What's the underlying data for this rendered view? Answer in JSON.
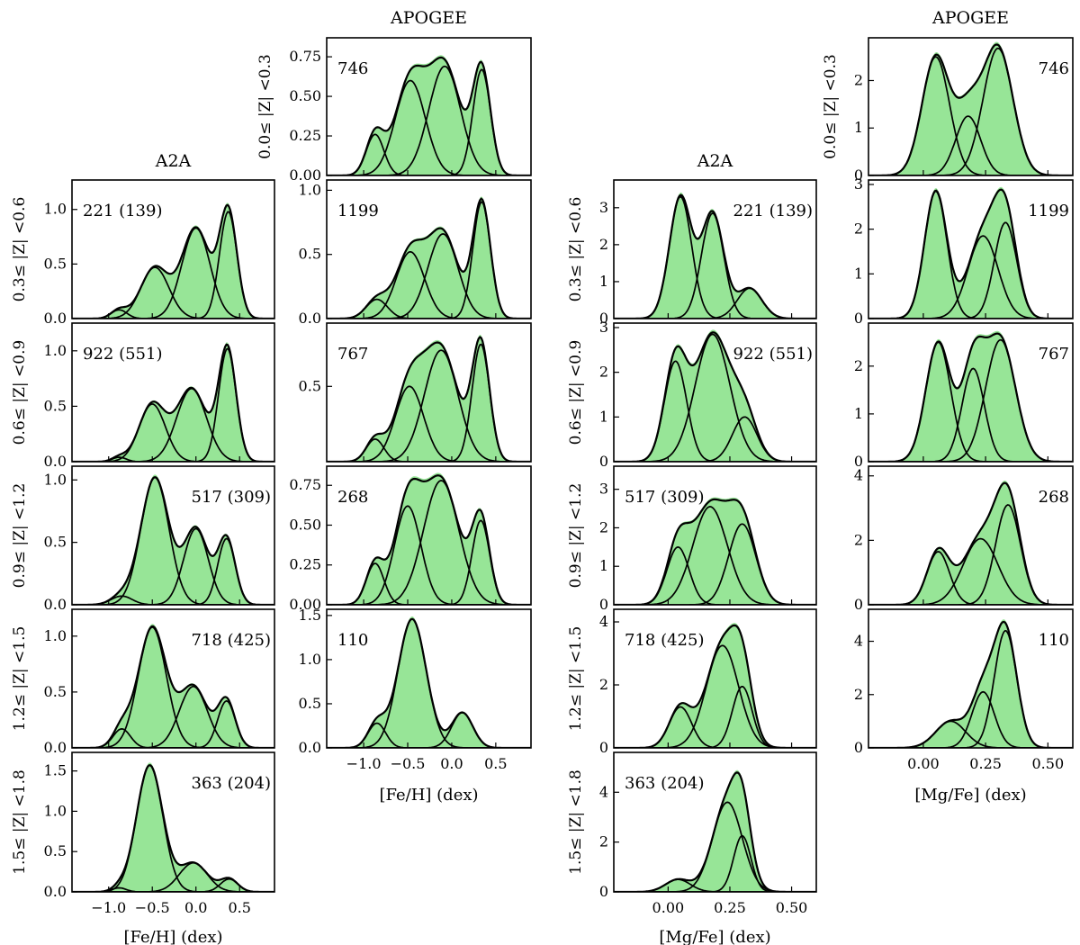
{
  "chart_data": {
    "type": "area",
    "column_titles": [
      "A2A",
      "APOGEE",
      "A2A",
      "APOGEE"
    ],
    "row_labels": [
      "0.0≤ |Z| <0.3",
      "0.3≤ |Z| <0.6",
      "0.6≤ |Z| <0.9",
      "0.9≤ |Z| <1.2",
      "1.2≤ |Z| <1.5",
      "1.5≤ |Z| <1.8"
    ],
    "xlabel_feh": "[Fe/H] (dex)",
    "xlabel_mgfe": "[Mg/Fe] (dex)",
    "xticks_feh": [
      "−1.0",
      "−0.5",
      "0.0",
      "0.5"
    ],
    "xticks_mgfe": [
      "0.00",
      "0.25",
      "0.50"
    ],
    "xlim_feh": [
      -1.42,
      0.9
    ],
    "xlim_mgfe": [
      -0.22,
      0.6
    ],
    "colors": {
      "fill": "#97e597",
      "line": "#000000"
    },
    "panels": [
      {
        "col": 1,
        "row": 0,
        "label": "746",
        "label_pos": "left",
        "ylim": [
          0,
          0.87
        ],
        "yticks": [
          "0.00",
          "0.25",
          "0.50",
          "0.75"
        ],
        "ytick_values": [
          0,
          0.25,
          0.5,
          0.75
        ],
        "components": [
          {
            "mu": -0.87,
            "sigma": 0.1,
            "amp": 0.26
          },
          {
            "mu": -0.47,
            "sigma": 0.17,
            "amp": 0.6
          },
          {
            "mu": -0.08,
            "sigma": 0.18,
            "amp": 0.69
          },
          {
            "mu": 0.34,
            "sigma": 0.1,
            "amp": 0.67
          }
        ]
      },
      {
        "col": 1,
        "row": 1,
        "label": "1199",
        "label_pos": "left",
        "ylim": [
          0,
          1.08
        ],
        "yticks": [
          "0.0",
          "0.5",
          "1.0"
        ],
        "ytick_values": [
          0,
          0.5,
          1.0
        ],
        "components": [
          {
            "mu": -0.85,
            "sigma": 0.12,
            "amp": 0.15
          },
          {
            "mu": -0.47,
            "sigma": 0.16,
            "amp": 0.52
          },
          {
            "mu": -0.1,
            "sigma": 0.17,
            "amp": 0.66
          },
          {
            "mu": 0.34,
            "sigma": 0.1,
            "amp": 0.91
          }
        ]
      },
      {
        "col": 1,
        "row": 2,
        "label": "767",
        "label_pos": "left",
        "ylim": [
          0,
          0.92
        ],
        "yticks": [
          "0.5"
        ],
        "ytick_values": [
          0.5
        ],
        "components": [
          {
            "mu": -0.87,
            "sigma": 0.1,
            "amp": 0.15
          },
          {
            "mu": -0.48,
            "sigma": 0.16,
            "amp": 0.5
          },
          {
            "mu": -0.12,
            "sigma": 0.19,
            "amp": 0.74
          },
          {
            "mu": 0.33,
            "sigma": 0.1,
            "amp": 0.78
          }
        ]
      },
      {
        "col": 1,
        "row": 3,
        "label": "268",
        "label_pos": "left",
        "ylim": [
          0,
          0.87
        ],
        "yticks": [
          "0.00",
          "0.25",
          "0.50",
          "0.75"
        ],
        "ytick_values": [
          0,
          0.25,
          0.5,
          0.75
        ],
        "components": [
          {
            "mu": -0.87,
            "sigma": 0.1,
            "amp": 0.26
          },
          {
            "mu": -0.5,
            "sigma": 0.15,
            "amp": 0.62
          },
          {
            "mu": -0.12,
            "sigma": 0.2,
            "amp": 0.78
          },
          {
            "mu": 0.33,
            "sigma": 0.1,
            "amp": 0.53
          }
        ]
      },
      {
        "col": 1,
        "row": 4,
        "label": "110",
        "label_pos": "left",
        "ylim": [
          0,
          1.57
        ],
        "yticks": [
          "0.0",
          "0.5",
          "1.0",
          "1.5"
        ],
        "ytick_values": [
          0,
          0.5,
          1.0,
          1.5
        ],
        "components": [
          {
            "mu": -0.85,
            "sigma": 0.1,
            "amp": 0.28
          },
          {
            "mu": -0.45,
            "sigma": 0.16,
            "amp": 1.46
          },
          {
            "mu": 0.12,
            "sigma": 0.12,
            "amp": 0.4
          }
        ]
      },
      {
        "col": 0,
        "row": 1,
        "label": "221 (139)",
        "label_pos": "left",
        "ylim": [
          0,
          1.27
        ],
        "yticks": [
          "0.0",
          "0.5",
          "1.0"
        ],
        "ytick_values": [
          0,
          0.5,
          1.0
        ],
        "components": [
          {
            "mu": -0.88,
            "sigma": 0.09,
            "amp": 0.08
          },
          {
            "mu": -0.47,
            "sigma": 0.16,
            "amp": 0.47
          },
          {
            "mu": 0.0,
            "sigma": 0.16,
            "amp": 0.83
          },
          {
            "mu": 0.37,
            "sigma": 0.1,
            "amp": 0.98
          }
        ]
      },
      {
        "col": 0,
        "row": 2,
        "label": "922 (551)",
        "label_pos": "left",
        "ylim": [
          0,
          1.25
        ],
        "yticks": [
          "0.0",
          "0.5",
          "1.0"
        ],
        "ytick_values": [
          0,
          0.5,
          1.0
        ],
        "components": [
          {
            "mu": -0.88,
            "sigma": 0.08,
            "amp": 0.04
          },
          {
            "mu": -0.5,
            "sigma": 0.15,
            "amp": 0.52
          },
          {
            "mu": -0.05,
            "sigma": 0.17,
            "amp": 0.66
          },
          {
            "mu": 0.36,
            "sigma": 0.1,
            "amp": 1.02
          }
        ]
      },
      {
        "col": 0,
        "row": 3,
        "label": "517 (309)",
        "label_pos": "right",
        "ylim": [
          0,
          1.11
        ],
        "yticks": [
          "0.0",
          "0.5",
          "1.0"
        ],
        "ytick_values": [
          0,
          0.5,
          1.0
        ],
        "components": [
          {
            "mu": -0.85,
            "sigma": 0.12,
            "amp": 0.07
          },
          {
            "mu": -0.47,
            "sigma": 0.16,
            "amp": 1.02
          },
          {
            "mu": 0.0,
            "sigma": 0.14,
            "amp": 0.61
          },
          {
            "mu": 0.35,
            "sigma": 0.1,
            "amp": 0.53
          }
        ]
      },
      {
        "col": 0,
        "row": 4,
        "label": "718 (425)",
        "label_pos": "right",
        "ylim": [
          0,
          1.24
        ],
        "yticks": [
          "0.0",
          "0.5",
          "1.0"
        ],
        "ytick_values": [
          0,
          0.5,
          1.0
        ],
        "components": [
          {
            "mu": -0.85,
            "sigma": 0.1,
            "amp": 0.17
          },
          {
            "mu": -0.5,
            "sigma": 0.16,
            "amp": 1.08
          },
          {
            "mu": -0.03,
            "sigma": 0.16,
            "amp": 0.55
          },
          {
            "mu": 0.35,
            "sigma": 0.1,
            "amp": 0.42
          }
        ]
      },
      {
        "col": 0,
        "row": 5,
        "label": "363 (204)",
        "label_pos": "right",
        "ylim": [
          0,
          1.73
        ],
        "yticks": [
          "0.0",
          "0.5",
          "1.0",
          "1.5"
        ],
        "ytick_values": [
          0,
          0.5,
          1.0,
          1.5
        ],
        "components": [
          {
            "mu": -0.88,
            "sigma": 0.08,
            "amp": 0.05
          },
          {
            "mu": -0.53,
            "sigma": 0.15,
            "amp": 1.57
          },
          {
            "mu": -0.03,
            "sigma": 0.16,
            "amp": 0.36
          },
          {
            "mu": 0.38,
            "sigma": 0.1,
            "amp": 0.16
          }
        ]
      },
      {
        "col": 3,
        "row": 0,
        "label": "746",
        "label_pos": "right",
        "ylim": [
          0,
          2.9
        ],
        "yticks": [
          "0",
          "1",
          "2"
        ],
        "ytick_values": [
          0,
          1,
          2
        ],
        "components": [
          {
            "mu": 0.05,
            "sigma": 0.055,
            "amp": 2.5
          },
          {
            "mu": 0.18,
            "sigma": 0.05,
            "amp": 1.25
          },
          {
            "mu": 0.3,
            "sigma": 0.06,
            "amp": 2.68
          }
        ]
      },
      {
        "col": 3,
        "row": 1,
        "label": "1199",
        "label_pos": "right",
        "ylim": [
          0,
          3.1
        ],
        "yticks": [
          "0",
          "1",
          "2",
          "3"
        ],
        "ytick_values": [
          0,
          1,
          2,
          3
        ],
        "components": [
          {
            "mu": 0.05,
            "sigma": 0.045,
            "amp": 2.85
          },
          {
            "mu": 0.24,
            "sigma": 0.06,
            "amp": 1.85
          },
          {
            "mu": 0.33,
            "sigma": 0.045,
            "amp": 2.15
          }
        ]
      },
      {
        "col": 3,
        "row": 2,
        "label": "767",
        "label_pos": "right",
        "ylim": [
          0,
          2.9
        ],
        "yticks": [
          "0",
          "1",
          "2"
        ],
        "ytick_values": [
          0,
          1,
          2
        ],
        "components": [
          {
            "mu": 0.06,
            "sigma": 0.05,
            "amp": 2.5
          },
          {
            "mu": 0.2,
            "sigma": 0.045,
            "amp": 1.95
          },
          {
            "mu": 0.31,
            "sigma": 0.06,
            "amp": 2.55
          }
        ]
      },
      {
        "col": 3,
        "row": 3,
        "label": "268",
        "label_pos": "right",
        "ylim": [
          0,
          4.3
        ],
        "yticks": [
          "0",
          "2",
          "4"
        ],
        "ytick_values": [
          0,
          2,
          4
        ],
        "components": [
          {
            "mu": 0.06,
            "sigma": 0.045,
            "amp": 1.65
          },
          {
            "mu": 0.23,
            "sigma": 0.07,
            "amp": 2.05
          },
          {
            "mu": 0.34,
            "sigma": 0.05,
            "amp": 3.1
          }
        ]
      },
      {
        "col": 3,
        "row": 4,
        "label": "110",
        "label_pos": "right",
        "ylim": [
          0,
          5.2
        ],
        "yticks": [
          "0",
          "2",
          "4"
        ],
        "ytick_values": [
          0,
          2,
          4
        ],
        "components": [
          {
            "mu": 0.11,
            "sigma": 0.06,
            "amp": 1.0
          },
          {
            "mu": 0.24,
            "sigma": 0.045,
            "amp": 2.1
          },
          {
            "mu": 0.33,
            "sigma": 0.045,
            "amp": 4.4
          }
        ]
      },
      {
        "col": 2,
        "row": 1,
        "label": "221 (139)",
        "label_pos": "right",
        "ylim": [
          0,
          3.75
        ],
        "yticks": [
          "0",
          "1",
          "2",
          "3"
        ],
        "ytick_values": [
          0,
          1,
          2,
          3
        ],
        "components": [
          {
            "mu": 0.05,
            "sigma": 0.045,
            "amp": 3.3
          },
          {
            "mu": 0.18,
            "sigma": 0.045,
            "amp": 2.85
          },
          {
            "mu": 0.33,
            "sigma": 0.05,
            "amp": 0.82
          }
        ]
      },
      {
        "col": 2,
        "row": 2,
        "label": "922 (551)",
        "label_pos": "right",
        "ylim": [
          0,
          3.1
        ],
        "yticks": [
          "0",
          "1",
          "2",
          "3"
        ],
        "ytick_values": [
          0,
          1,
          2,
          3
        ],
        "components": [
          {
            "mu": 0.03,
            "sigma": 0.045,
            "amp": 2.25
          },
          {
            "mu": 0.18,
            "sigma": 0.07,
            "amp": 2.85
          },
          {
            "mu": 0.31,
            "sigma": 0.05,
            "amp": 1.0
          }
        ]
      },
      {
        "col": 2,
        "row": 3,
        "label": "517 (309)",
        "label_pos": "left",
        "ylim": [
          0,
          3.6
        ],
        "yticks": [
          "0",
          "1",
          "2",
          "3"
        ],
        "ytick_values": [
          0,
          1,
          2,
          3
        ],
        "components": [
          {
            "mu": 0.04,
            "sigma": 0.045,
            "amp": 1.5
          },
          {
            "mu": 0.17,
            "sigma": 0.07,
            "amp": 2.55
          },
          {
            "mu": 0.3,
            "sigma": 0.055,
            "amp": 2.1
          }
        ]
      },
      {
        "col": 2,
        "row": 4,
        "label": "718 (425)",
        "label_pos": "left",
        "ylim": [
          0,
          4.4
        ],
        "yticks": [
          "0",
          "2",
          "4"
        ],
        "ytick_values": [
          0,
          2,
          4
        ],
        "components": [
          {
            "mu": 0.05,
            "sigma": 0.045,
            "amp": 1.3
          },
          {
            "mu": 0.22,
            "sigma": 0.065,
            "amp": 3.25
          },
          {
            "mu": 0.3,
            "sigma": 0.04,
            "amp": 1.95
          }
        ]
      },
      {
        "col": 2,
        "row": 5,
        "label": "363 (204)",
        "label_pos": "left",
        "ylim": [
          0,
          5.6
        ],
        "yticks": [
          "0",
          "2",
          "4"
        ],
        "ytick_values": [
          0,
          2,
          4
        ],
        "components": [
          {
            "mu": 0.04,
            "sigma": 0.05,
            "amp": 0.5
          },
          {
            "mu": 0.24,
            "sigma": 0.06,
            "amp": 3.6
          },
          {
            "mu": 0.3,
            "sigma": 0.035,
            "amp": 2.25
          }
        ]
      }
    ]
  }
}
